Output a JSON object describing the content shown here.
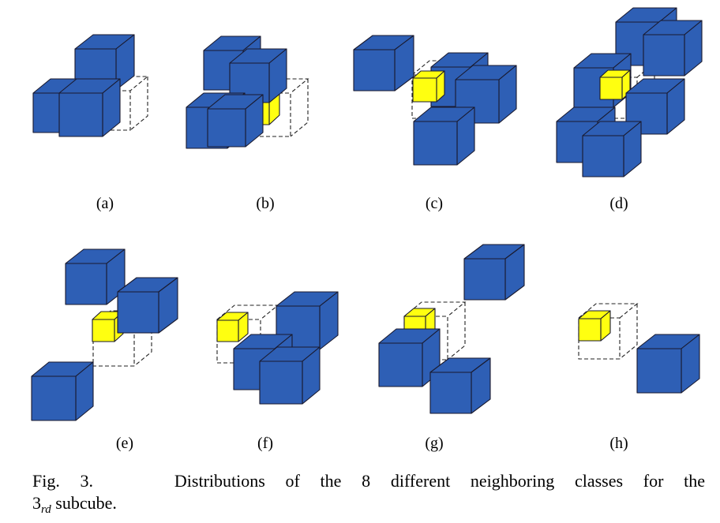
{
  "figure": {
    "colors": {
      "neighbor": "#2E5FB5",
      "neighbor_stroke": "#1a1a2e",
      "subcube": "#FFFF10",
      "dashed": "#222222"
    },
    "panels": [
      {
        "label": "(a)"
      },
      {
        "label": "(b)"
      },
      {
        "label": "(c)"
      },
      {
        "label": "(d)"
      },
      {
        "label": "(e)"
      },
      {
        "label": "(f)"
      },
      {
        "label": "(g)"
      },
      {
        "label": "(h)"
      }
    ]
  },
  "caption": {
    "line1": "Fig. 3.    Distributions of the 8 different neighboring classes for the",
    "prefix": "3",
    "subscript": "rd",
    "suffix": " subcube."
  }
}
